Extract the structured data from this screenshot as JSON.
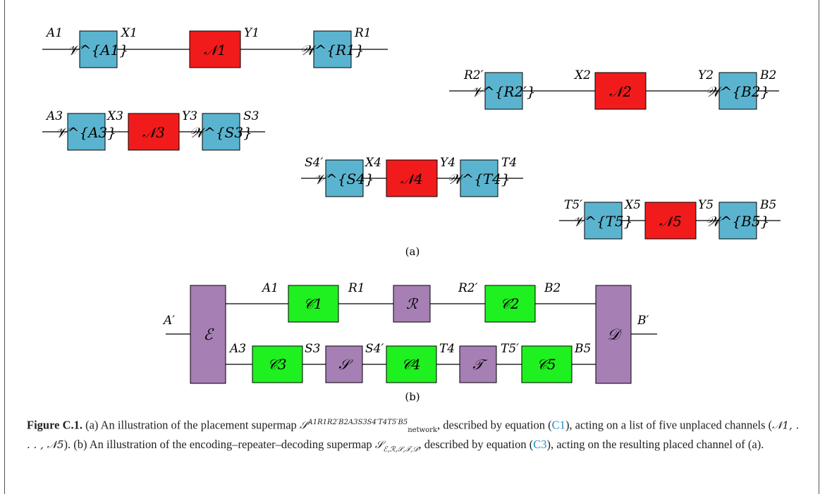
{
  "diagram_a": {
    "label": "(a)",
    "rows": [
      {
        "in": "A1",
        "v": "𝒱^{A1}",
        "x": "X1",
        "n": "𝒩1",
        "y": "Y1",
        "w": "𝒲^{R1}",
        "out": "R1"
      },
      {
        "in": "R2′",
        "v": "𝒱^{R2′}",
        "x": "X2",
        "n": "𝒩2",
        "y": "Y2",
        "w": "𝒲^{B2}",
        "out": "B2"
      },
      {
        "in": "A3",
        "v": "𝒱^{A3}",
        "x": "X3",
        "n": "𝒩3",
        "y": "Y3",
        "w": "𝒲^{S3}",
        "out": "S3"
      },
      {
        "in": "S4′",
        "v": "𝒱^{S4}",
        "x": "X4",
        "n": "𝒩4",
        "y": "Y4",
        "w": "𝒲^{T4}",
        "out": "T4"
      },
      {
        "in": "T5′",
        "v": "𝒱^{T5}",
        "x": "X5",
        "n": "𝒩5",
        "y": "Y5",
        "w": "𝒲^{B5}",
        "out": "B5"
      }
    ]
  },
  "diagram_b": {
    "label": "(b)",
    "input": "A′",
    "output": "B′",
    "encoder": "ℰ",
    "decoder": "𝒟",
    "top": {
      "wires": [
        "A1",
        "R1",
        "R2′",
        "B2"
      ],
      "boxes": [
        "𝒞1",
        "ℛ",
        "𝒞2"
      ]
    },
    "bottom": {
      "wires": [
        "A3",
        "S3",
        "S4′",
        "T4",
        "T5′",
        "B5"
      ],
      "boxes": [
        "𝒞3",
        "𝒮",
        "𝒞4",
        "𝒯",
        "𝒞5"
      ]
    }
  },
  "caption": {
    "fig": "Figure C.1.",
    "t1": " (a) An illustration of the placement supermap ",
    "sym1": "𝒮",
    "sup1": "A1R1R2′B2A3S3S4′T4T5′B5",
    "sub1": "network",
    "t2": ", described by equation (",
    "ref1": "C1",
    "t3": "), acting on a list of five unplaced channels (",
    "chans": "𝒩1, . . . , 𝒩5",
    "t4": "). (b) An illustration of the encoding–repeater–decoding supermap ",
    "sym2": "𝒮",
    "sub2": "ℰ,ℛ,𝒮,𝒯,𝒟",
    "t5": ", described by equation (",
    "ref2": "C3",
    "t6": "), acting on the resulting placed channel of (a)."
  },
  "colors": {
    "blue": "#5bb4cf",
    "red": "#f21b1b",
    "green": "#1ff01f",
    "purple": "#a67fb5"
  }
}
